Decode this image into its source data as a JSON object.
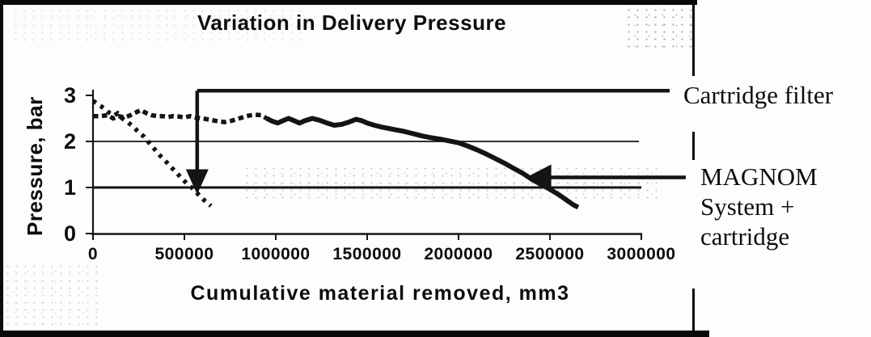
{
  "figure": {
    "title": "Variation in Delivery Pressure",
    "y_axis": {
      "label": "Pressure, bar",
      "tick_labels": [
        "3",
        "2",
        "1",
        "0"
      ]
    },
    "x_axis": {
      "label": "Cumulative material removed, mm3",
      "tick_labels": [
        "0",
        "500000",
        "1000000",
        "1500000",
        "2000000",
        "2500000",
        "3000000"
      ]
    },
    "right_labels": {
      "cartridge_filter": "Cartridge filter",
      "magnom": [
        "MAGNOM",
        "System +",
        "cartridge"
      ]
    }
  },
  "chart_data": {
    "type": "line",
    "title": "Variation in Delivery Pressure",
    "xlabel": "Cumulative material removed, mm3",
    "ylabel": "Pressure, bar",
    "xlim": [
      0,
      3000000
    ],
    "ylim": [
      0,
      3
    ],
    "x_ticks": [
      0,
      500000,
      1000000,
      1500000,
      2000000,
      2500000,
      3000000
    ],
    "y_ticks": [
      0,
      1,
      2,
      3
    ],
    "gridlines_y": [
      1,
      2
    ],
    "grid": "horizontal gridlines at 1 and 2 bar only",
    "legend_position": "annotated labels at right with arrows",
    "ink_color": "#141414",
    "series": [
      {
        "name": "Cartridge filter",
        "style": "dotted",
        "points": [
          [
            0,
            2.88
          ],
          [
            30000,
            2.8
          ],
          [
            60000,
            2.72
          ],
          [
            90000,
            2.62
          ],
          [
            115000,
            2.56
          ],
          [
            135000,
            2.61
          ],
          [
            160000,
            2.5
          ],
          [
            190000,
            2.42
          ],
          [
            220000,
            2.32
          ],
          [
            250000,
            2.2
          ],
          [
            280000,
            2.1
          ],
          [
            305000,
            1.98
          ],
          [
            335000,
            1.84
          ],
          [
            365000,
            1.7
          ],
          [
            395000,
            1.58
          ],
          [
            425000,
            1.45
          ],
          [
            455000,
            1.33
          ],
          [
            485000,
            1.2
          ],
          [
            515000,
            1.08
          ],
          [
            540000,
            1.0
          ],
          [
            565000,
            0.9
          ],
          [
            590000,
            0.79
          ],
          [
            615000,
            0.7
          ],
          [
            645000,
            0.6
          ]
        ]
      },
      {
        "name": "MAGNOM System + cartridge",
        "style": "dotted-merging-to-solid",
        "solid_from_x": 950000,
        "points": [
          [
            0,
            2.55
          ],
          [
            40000,
            2.55
          ],
          [
            80000,
            2.57
          ],
          [
            110000,
            2.5
          ],
          [
            140000,
            2.55
          ],
          [
            170000,
            2.52
          ],
          [
            200000,
            2.56
          ],
          [
            230000,
            2.62
          ],
          [
            260000,
            2.68
          ],
          [
            290000,
            2.62
          ],
          [
            320000,
            2.57
          ],
          [
            350000,
            2.55
          ],
          [
            380000,
            2.55
          ],
          [
            410000,
            2.53
          ],
          [
            440000,
            2.55
          ],
          [
            470000,
            2.54
          ],
          [
            500000,
            2.52
          ],
          [
            530000,
            2.55
          ],
          [
            560000,
            2.52
          ],
          [
            600000,
            2.5
          ],
          [
            640000,
            2.47
          ],
          [
            680000,
            2.44
          ],
          [
            720000,
            2.42
          ],
          [
            760000,
            2.45
          ],
          [
            800000,
            2.5
          ],
          [
            840000,
            2.55
          ],
          [
            880000,
            2.58
          ],
          [
            920000,
            2.57
          ],
          [
            950000,
            2.5
          ],
          [
            980000,
            2.44
          ],
          [
            1010000,
            2.4
          ],
          [
            1040000,
            2.45
          ],
          [
            1070000,
            2.5
          ],
          [
            1100000,
            2.45
          ],
          [
            1130000,
            2.4
          ],
          [
            1160000,
            2.45
          ],
          [
            1200000,
            2.5
          ],
          [
            1240000,
            2.46
          ],
          [
            1280000,
            2.4
          ],
          [
            1320000,
            2.35
          ],
          [
            1360000,
            2.37
          ],
          [
            1400000,
            2.42
          ],
          [
            1440000,
            2.48
          ],
          [
            1470000,
            2.45
          ],
          [
            1500000,
            2.4
          ],
          [
            1540000,
            2.35
          ],
          [
            1580000,
            2.31
          ],
          [
            1620000,
            2.28
          ],
          [
            1660000,
            2.25
          ],
          [
            1700000,
            2.22
          ],
          [
            1750000,
            2.17
          ],
          [
            1800000,
            2.12
          ],
          [
            1850000,
            2.08
          ],
          [
            1900000,
            2.05
          ],
          [
            1950000,
            2.01
          ],
          [
            2000000,
            1.97
          ],
          [
            2050000,
            1.9
          ],
          [
            2100000,
            1.82
          ],
          [
            2150000,
            1.73
          ],
          [
            2200000,
            1.63
          ],
          [
            2250000,
            1.53
          ],
          [
            2300000,
            1.42
          ],
          [
            2350000,
            1.31
          ],
          [
            2400000,
            1.18
          ],
          [
            2450000,
            1.07
          ],
          [
            2500000,
            0.96
          ],
          [
            2550000,
            0.84
          ],
          [
            2600000,
            0.7
          ],
          [
            2630000,
            0.62
          ],
          [
            2655000,
            0.57
          ]
        ]
      }
    ],
    "annotations": [
      {
        "label": "Cartridge filter",
        "arrow": "down",
        "at_x": 570000,
        "from_bar": 3.1,
        "to_bar": 0.85
      },
      {
        "label": "MAGNOM System + cartridge",
        "arrow": "left",
        "at_x": 2370000,
        "at_bar": 1.22
      }
    ]
  }
}
